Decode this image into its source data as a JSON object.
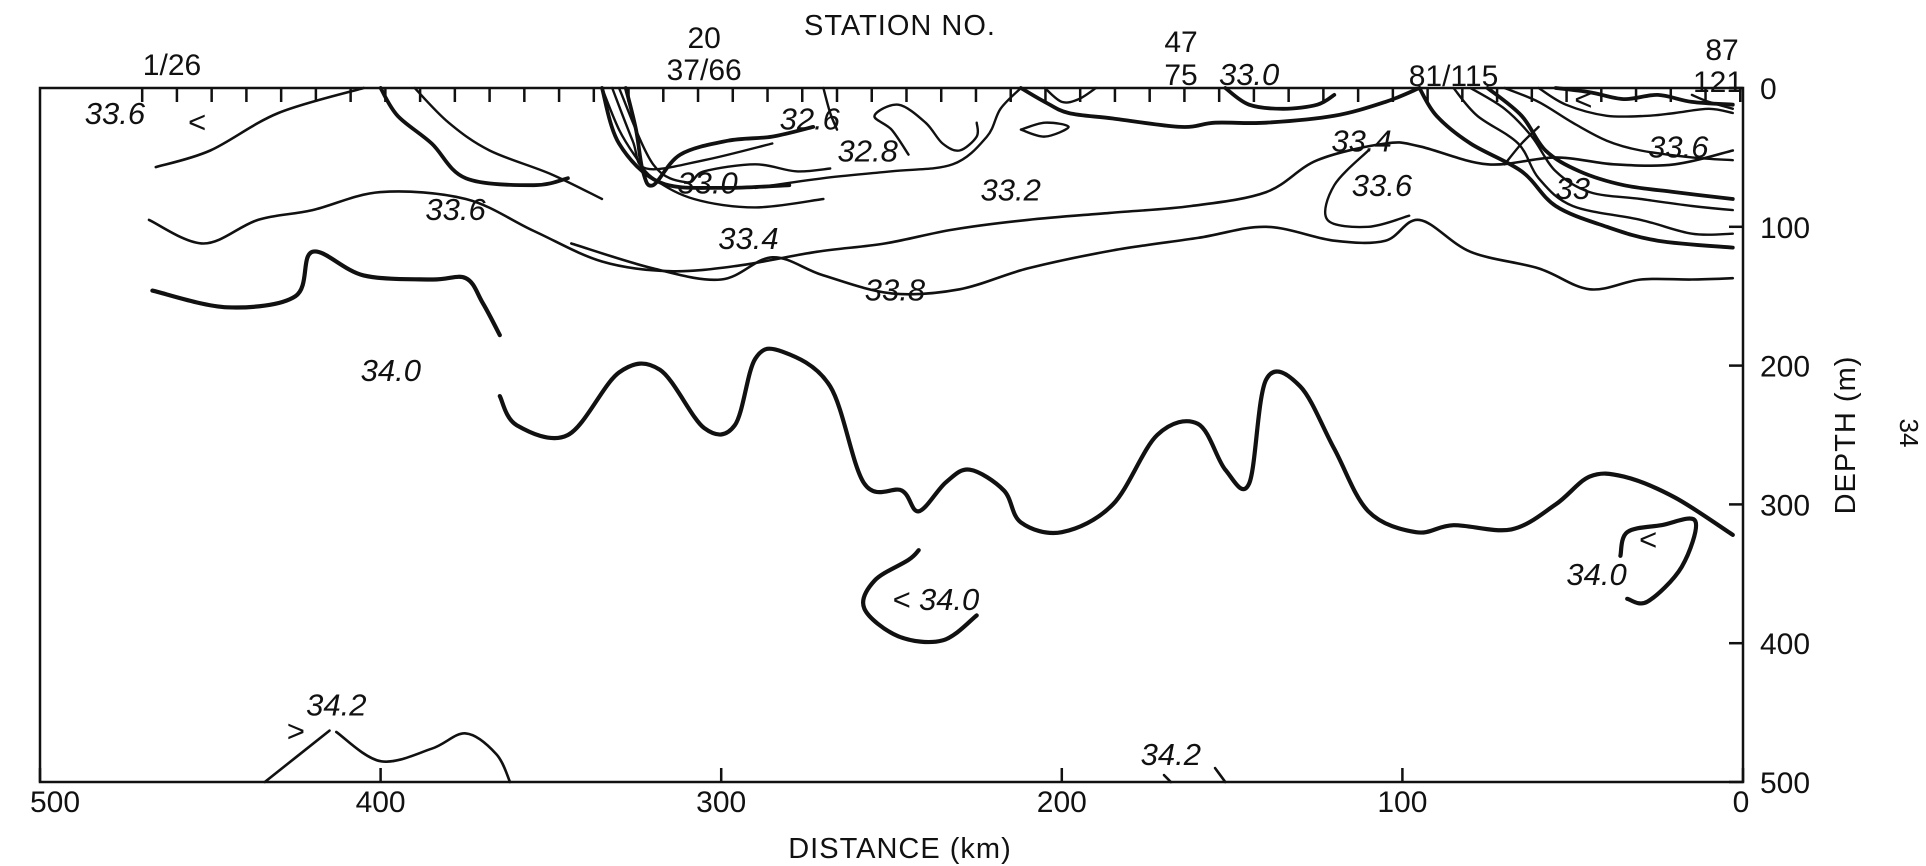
{
  "chart_data": {
    "type": "contour",
    "title": "",
    "xlabel": "DISTANCE (km)",
    "ylabel": "DEPTH (m)",
    "top_label": "STATION NO.",
    "page_number": "34",
    "xlim": [
      500,
      0
    ],
    "ylim": [
      500,
      0
    ],
    "x_ticks": [
      "500",
      "400",
      "300",
      "200",
      "100",
      "0"
    ],
    "y_ticks": [
      "0",
      "100",
      "200",
      "300",
      "400",
      "500"
    ],
    "stations": [
      {
        "label": "1/26",
        "distance": 470
      },
      {
        "label": "20",
        "distance": 305
      },
      {
        "label": "37/66",
        "distance": 305
      },
      {
        "label": "47",
        "distance": 165
      },
      {
        "label": "75",
        "distance": 165
      },
      {
        "label": "81/115",
        "distance": 85
      },
      {
        "label": "87",
        "distance": 5
      },
      {
        "label": "121",
        "distance": 5
      }
    ],
    "isohaline_labels": [
      {
        "text": "33.6",
        "x": 478,
        "y": 18
      },
      {
        "text": "<",
        "x": 454,
        "y": 24
      },
      {
        "text": "32.6",
        "x": 274,
        "y": 22
      },
      {
        "text": "32.8",
        "x": 257,
        "y": 45
      },
      {
        "text": "33.0",
        "x": 304,
        "y": 68
      },
      {
        "text": "33.2",
        "x": 215,
        "y": 73
      },
      {
        "text": "33.6",
        "x": 378,
        "y": 87
      },
      {
        "text": "33.4",
        "x": 292,
        "y": 108
      },
      {
        "text": "33.8",
        "x": 249,
        "y": 145
      },
      {
        "text": "33.0",
        "x": 145,
        "y": -10
      },
      {
        "text": "33.4",
        "x": 112,
        "y": 38
      },
      {
        "text": "33.6",
        "x": 106,
        "y": 70
      },
      {
        "text": "<",
        "x": 47,
        "y": 8
      },
      {
        "text": "33.6",
        "x": 19,
        "y": 42
      },
      {
        "text": "33",
        "x": 50,
        "y": 72
      },
      {
        "text": "34.0",
        "x": 397,
        "y": 203
      },
      {
        "text": "< 34.0",
        "x": 237,
        "y": 368
      },
      {
        "text": "<",
        "x": 28,
        "y": 325
      },
      {
        "text": "34.0",
        "x": 43,
        "y": 350
      },
      {
        "text": "34.2",
        "x": 413,
        "y": 444
      },
      {
        "text": ">",
        "x": 425,
        "y": 463
      },
      {
        "text": "34.2",
        "x": 168,
        "y": 480
      }
    ],
    "contours": [
      {
        "value": "33.6",
        "weight": "thin",
        "points": [
          [
            466,
            57
          ],
          [
            450,
            45
          ],
          [
            430,
            18
          ],
          [
            405,
            0
          ]
        ]
      },
      {
        "value": "33.6",
        "weight": "thin",
        "points": [
          [
            468,
            95
          ],
          [
            452,
            112
          ],
          [
            436,
            95
          ],
          [
            420,
            88
          ],
          [
            400,
            75
          ],
          [
            375,
            80
          ],
          [
            355,
            103
          ],
          [
            335,
            125
          ],
          [
            315,
            132
          ],
          [
            295,
            128
          ],
          [
            272,
            118
          ],
          [
            252,
            112
          ],
          [
            232,
            102
          ],
          [
            210,
            95
          ],
          [
            186,
            90
          ],
          [
            162,
            85
          ],
          [
            140,
            75
          ],
          [
            125,
            52
          ],
          [
            105,
            40
          ],
          [
            95,
            42
          ],
          [
            75,
            55
          ],
          [
            55,
            50
          ],
          [
            38,
            55
          ],
          [
            20,
            55
          ],
          [
            3,
            45
          ]
        ]
      },
      {
        "value": "33.8",
        "weight": "thin",
        "points": [
          [
            344,
            112
          ],
          [
            320,
            130
          ],
          [
            300,
            138
          ],
          [
            285,
            122
          ],
          [
            270,
            135
          ],
          [
            250,
            148
          ],
          [
            230,
            145
          ],
          [
            210,
            130
          ],
          [
            185,
            117
          ],
          [
            160,
            108
          ],
          [
            140,
            100
          ],
          [
            120,
            110
          ],
          [
            105,
            110
          ],
          [
            95,
            95
          ],
          [
            80,
            118
          ],
          [
            60,
            130
          ],
          [
            45,
            145
          ],
          [
            30,
            138
          ],
          [
            15,
            138
          ],
          [
            3,
            137
          ]
        ]
      },
      {
        "value": "34.0",
        "weight": "thick",
        "points": [
          [
            467,
            146
          ],
          [
            445,
            158
          ],
          [
            425,
            150
          ],
          [
            420,
            118
          ],
          [
            405,
            135
          ],
          [
            385,
            138
          ],
          [
            375,
            137
          ],
          [
            370,
            155
          ],
          [
            365,
            178
          ]
        ]
      },
      {
        "value": "34.0",
        "weight": "thick",
        "points": [
          [
            365,
            222
          ],
          [
            360,
            243
          ],
          [
            345,
            250
          ],
          [
            330,
            205
          ],
          [
            318,
            203
          ],
          [
            305,
            245
          ],
          [
            296,
            243
          ],
          [
            290,
            195
          ],
          [
            282,
            190
          ],
          [
            268,
            215
          ],
          [
            258,
            285
          ],
          [
            247,
            290
          ],
          [
            242,
            305
          ],
          [
            234,
            284
          ],
          [
            227,
            275
          ],
          [
            217,
            290
          ],
          [
            212,
            313
          ],
          [
            200,
            320
          ],
          [
            185,
            300
          ],
          [
            172,
            250
          ],
          [
            160,
            242
          ],
          [
            152,
            275
          ],
          [
            145,
            285
          ],
          [
            140,
            210
          ],
          [
            130,
            215
          ],
          [
            120,
            260
          ],
          [
            110,
            305
          ],
          [
            96,
            320
          ],
          [
            85,
            315
          ],
          [
            68,
            318
          ],
          [
            55,
            300
          ],
          [
            45,
            280
          ],
          [
            35,
            280
          ],
          [
            20,
            295
          ],
          [
            3,
            322
          ]
        ]
      },
      {
        "value": "34.0",
        "weight": "thick",
        "points": [
          [
            242,
            333
          ],
          [
            245,
            340
          ],
          [
            255,
            355
          ],
          [
            258,
            375
          ],
          [
            248,
            395
          ],
          [
            235,
            398
          ],
          [
            225,
            380
          ]
        ]
      },
      {
        "value": "34.0",
        "weight": "thick",
        "points": [
          [
            36,
            337
          ],
          [
            34,
            320
          ],
          [
            24,
            315
          ],
          [
            14,
            312
          ],
          [
            18,
            345
          ],
          [
            28,
            370
          ],
          [
            34,
            368
          ]
        ]
      },
      {
        "value": "34.2",
        "weight": "thin",
        "points": [
          [
            434,
            500
          ],
          [
            415,
            463
          ]
        ]
      },
      {
        "value": "34.2",
        "weight": "thin",
        "points": [
          [
            413,
            464
          ],
          [
            400,
            485
          ],
          [
            385,
            476
          ],
          [
            375,
            465
          ],
          [
            366,
            480
          ],
          [
            362,
            500
          ]
        ]
      },
      {
        "value": "34.2",
        "weight": "thin",
        "points": [
          [
            170,
            495
          ],
          [
            168,
            500
          ]
        ]
      },
      {
        "value": "34.2",
        "weight": "thin",
        "points": [
          [
            155,
            490
          ],
          [
            152,
            500
          ]
        ]
      }
    ],
    "grid": false
  }
}
